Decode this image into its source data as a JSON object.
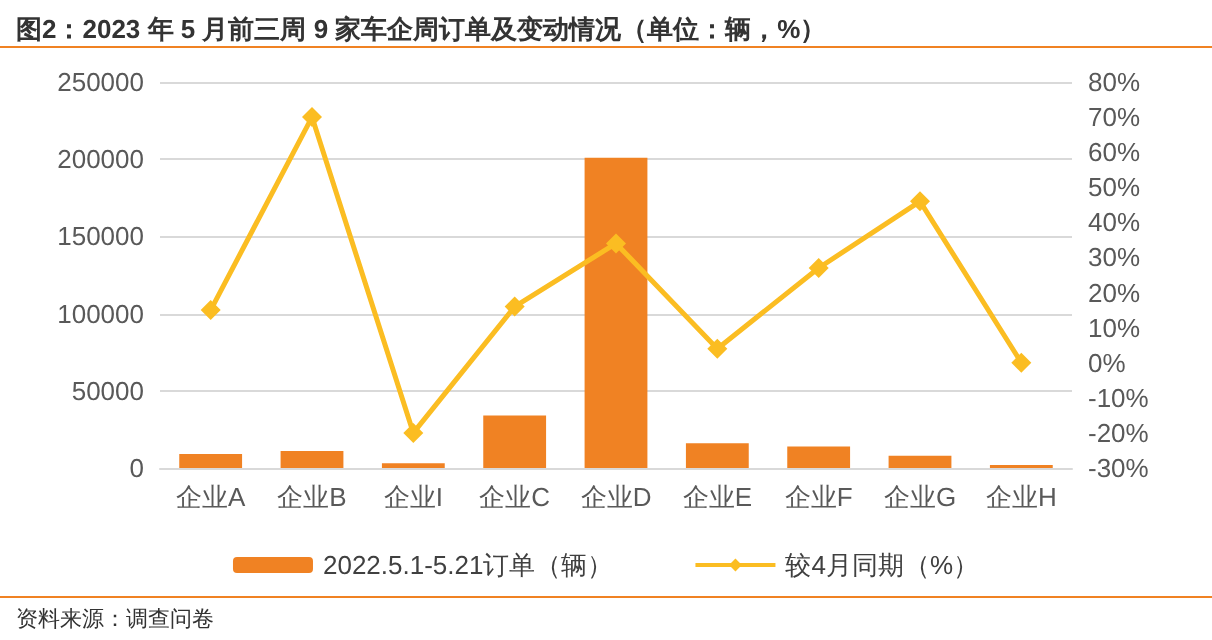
{
  "chart_data": {
    "type": "bar",
    "title": "图2：2023 年 5 月前三周 9 家车企周订单及变动情况（单位：辆，%）",
    "categories": [
      "企业A",
      "企业B",
      "企业I",
      "企业C",
      "企业D",
      "企业E",
      "企业F",
      "企业G",
      "企业H"
    ],
    "series": [
      {
        "name": "2022.5.1-5.21订单（辆）",
        "color": "#f08223",
        "values": [
          9000,
          11000,
          3000,
          34000,
          201000,
          16000,
          14000,
          8000,
          2000
        ]
      },
      {
        "name": "较4月同期（%）",
        "type": "line",
        "axis": "y2",
        "color": "#fbbd22",
        "marker": "diamond",
        "values": [
          15,
          70,
          -20,
          16,
          34,
          4,
          27,
          46,
          0
        ]
      }
    ],
    "ylim": [
      0,
      250000
    ],
    "yticks": [
      0,
      50000,
      100000,
      150000,
      200000,
      250000
    ],
    "y2lim": [
      -30,
      80
    ],
    "y2ticks": [
      {
        "value": -30,
        "label": "-30%"
      },
      {
        "value": -20,
        "label": "-20%"
      },
      {
        "value": -10,
        "label": "-10%"
      },
      {
        "value": 0,
        "label": "0%"
      },
      {
        "value": 10,
        "label": "10%"
      },
      {
        "value": 20,
        "label": "20%"
      },
      {
        "value": 30,
        "label": "30%"
      },
      {
        "value": 40,
        "label": "40%"
      },
      {
        "value": 50,
        "label": "50%"
      },
      {
        "value": 60,
        "label": "60%"
      },
      {
        "value": 70,
        "label": "70%"
      },
      {
        "value": 80,
        "label": "80%"
      }
    ],
    "grid": "y",
    "legend": "bottom",
    "annotations": [
      "资料来源：调查问卷"
    ]
  }
}
